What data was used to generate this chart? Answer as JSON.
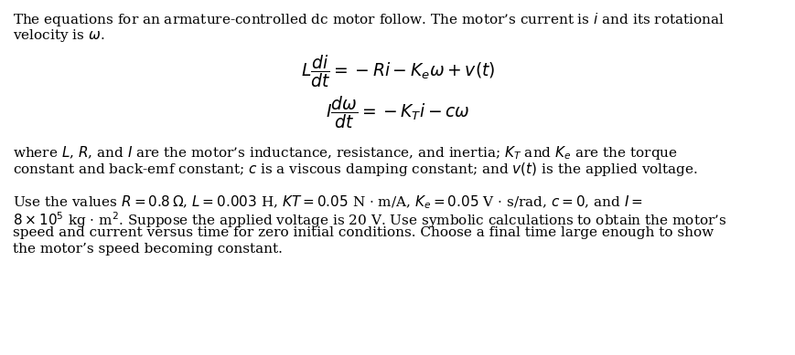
{
  "bg_color": "#ffffff",
  "text_color": "#000000",
  "fig_width": 8.7,
  "fig_height": 3.89,
  "dpi": 100,
  "fontsize_body": 11.0,
  "fontsize_eq": 13.5,
  "line1": "The equations for an armature-controlled dc motor follow. The motor’s current is $i$ and its rotational",
  "line2": "velocity is $\\omega$.",
  "eq1": "$L\\dfrac{di}{dt} = -Ri - K_e\\omega + v(t)$",
  "eq2": "$I\\dfrac{d\\omega}{dt} = -K_T i - c\\omega$",
  "where1": "where $L$, $R$, and $I$ are the motor’s inductance, resistance, and inertia; $K_T$ and $K_e$ are the torque",
  "where2": "constant and back-emf constant; $c$ is a viscous damping constant; and $v(t)$ is the applied voltage.",
  "use1": "Use the values $R = 0.8\\,\\Omega$, $L = 0.003$ H, $KT = 0.05$ N $\\cdot$ m/A, $K_e = 0.05$ V $\\cdot$ s/rad, $c = 0$, and $I =$",
  "use2": "$8 \\times 10^5$ kg $\\cdot$ m$^2$. Suppose the applied voltage is 20 V. Use symbolic calculations to obtain the motor’s",
  "use3": "speed and current versus time for zero initial conditions. Choose a final time large enough to show",
  "use4": "the motor’s speed becoming constant."
}
